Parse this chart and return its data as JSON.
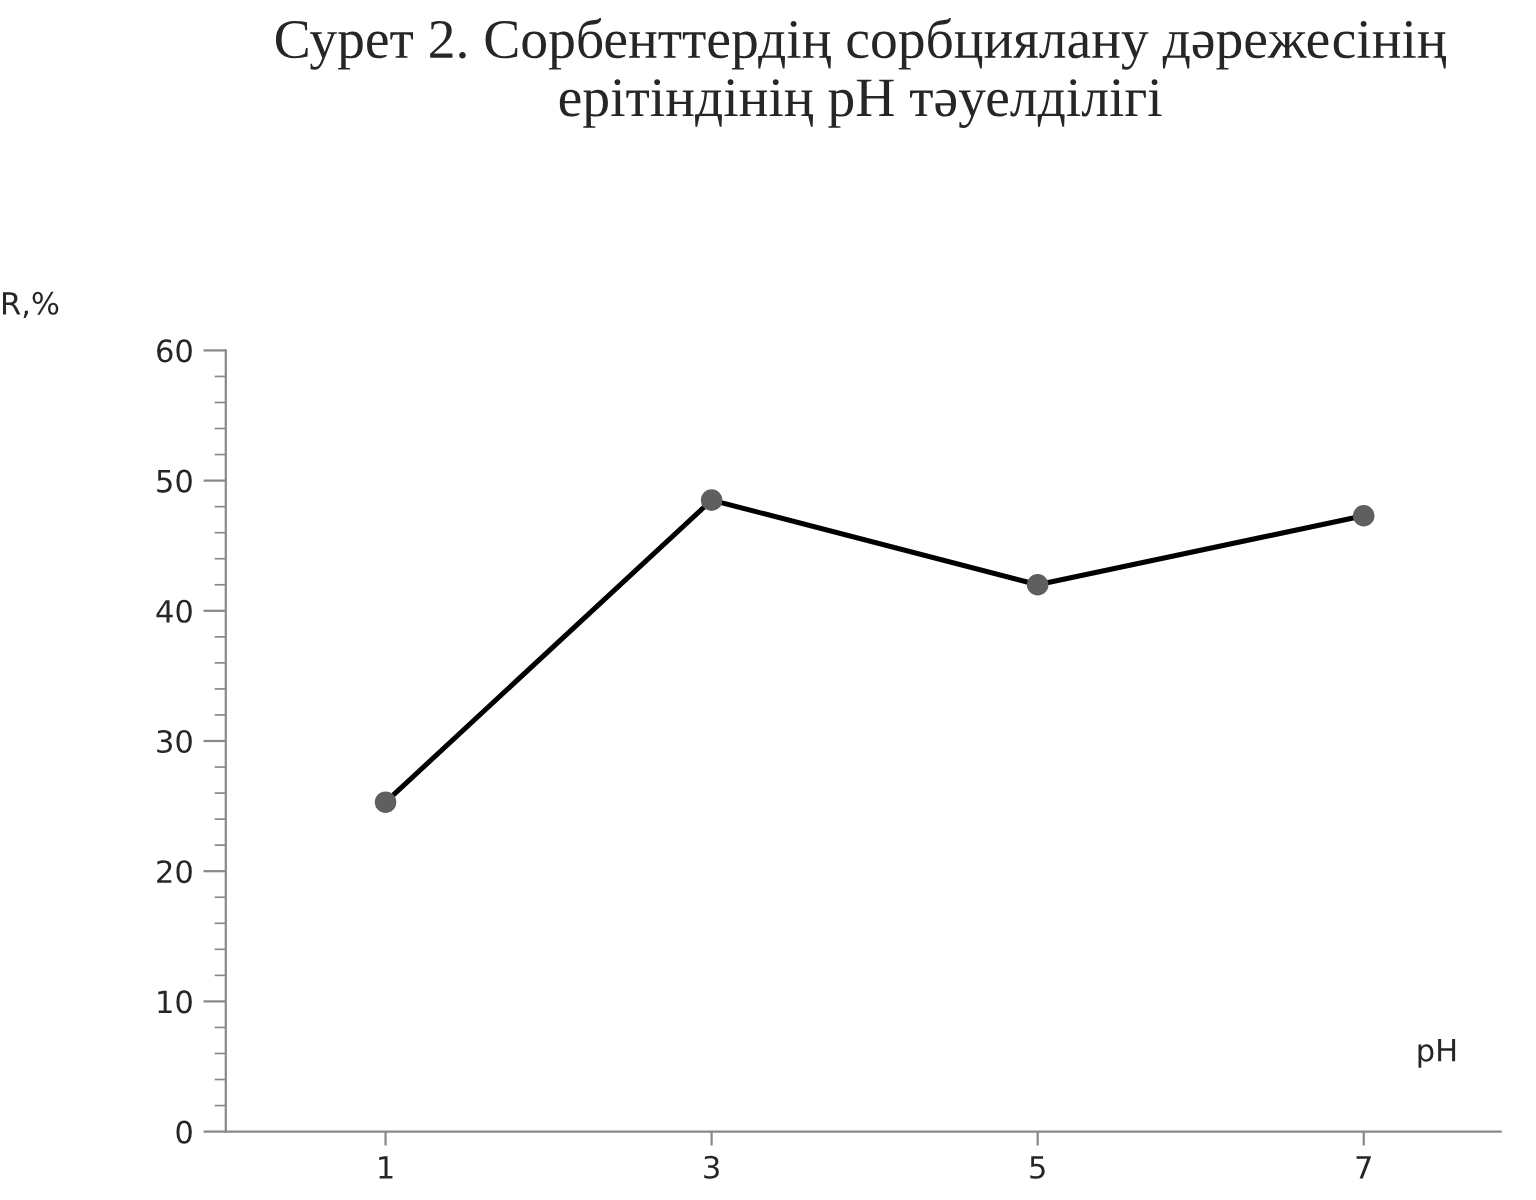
{
  "chart_data": {
    "type": "line",
    "title": "Сурет 2. Сорбенттердің сорбциялану дәрежесінің\nерітіндінің pH тәуелділігі",
    "xlabel": "pH",
    "ylabel": "R,%",
    "categories": [
      "1",
      "3",
      "5",
      "7"
    ],
    "series": [
      {
        "color": "#000000",
        "values": [
          25.3,
          48.5,
          42.0,
          47.3
        ]
      }
    ],
    "marker": "circle",
    "line_style": "solid",
    "ylim": [
      0,
      60
    ],
    "yticks": [
      0,
      {
        "value": 2,
        "label": null
      },
      {
        "value": 4,
        "label": null
      },
      {
        "value": 6,
        "label": null
      },
      {
        "value": 8,
        "label": null
      },
      10,
      {
        "value": 12,
        "label": null
      },
      {
        "value": 14,
        "label": null
      },
      {
        "value": 16,
        "label": null
      },
      {
        "value": 18,
        "label": null
      },
      20,
      {
        "value": 22,
        "label": null
      },
      {
        "value": 24,
        "label": null
      },
      {
        "value": 26,
        "label": null
      },
      {
        "value": 28,
        "label": null
      },
      30,
      {
        "value": 32,
        "label": null
      },
      {
        "value": 34,
        "label": null
      },
      {
        "value": 36,
        "label": null
      },
      {
        "value": 38,
        "label": null
      },
      40,
      {
        "value": 42,
        "label": null
      },
      {
        "value": 44,
        "label": null
      },
      {
        "value": 46,
        "label": null
      },
      {
        "value": 48,
        "label": null
      },
      50,
      {
        "value": 52,
        "label": null
      },
      {
        "value": 54,
        "label": null
      },
      {
        "value": 56,
        "label": null
      },
      {
        "value": 58,
        "label": null
      },
      60
    ],
    "grid": false,
    "legend": false
  }
}
